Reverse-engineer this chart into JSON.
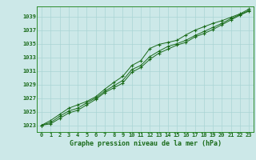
{
  "title": "Graphe pression niveau de la mer (hPa)",
  "background_color": "#cce8e8",
  "grid_color": "#aad4d4",
  "line_color": "#1a6b1a",
  "spine_color": "#2d8c2d",
  "ylim": [
    1022.0,
    1040.5
  ],
  "yticks": [
    1023,
    1025,
    1027,
    1029,
    1031,
    1033,
    1035,
    1037,
    1039
  ],
  "line1": [
    1023.0,
    1023.4,
    1024.3,
    1025.1,
    1025.5,
    1026.3,
    1027.0,
    1028.0,
    1028.8,
    1029.6,
    1031.2,
    1031.8,
    1033.1,
    1033.9,
    1034.6,
    1035.0,
    1035.5,
    1036.2,
    1036.8,
    1037.4,
    1038.0,
    1038.7,
    1039.3,
    1039.9
  ],
  "line2": [
    1023.0,
    1023.7,
    1024.6,
    1025.5,
    1026.0,
    1026.5,
    1027.2,
    1028.3,
    1029.3,
    1030.2,
    1031.8,
    1032.5,
    1034.3,
    1034.9,
    1035.2,
    1035.5,
    1036.3,
    1037.0,
    1037.5,
    1038.0,
    1038.4,
    1038.9,
    1039.4,
    1040.1
  ],
  "line3": [
    1023.0,
    1023.2,
    1024.0,
    1024.8,
    1025.2,
    1026.0,
    1026.8,
    1027.8,
    1028.5,
    1029.2,
    1030.8,
    1031.5,
    1032.7,
    1033.6,
    1034.2,
    1034.8,
    1035.2,
    1036.0,
    1036.5,
    1037.1,
    1037.8,
    1038.5,
    1039.2,
    1039.8
  ]
}
